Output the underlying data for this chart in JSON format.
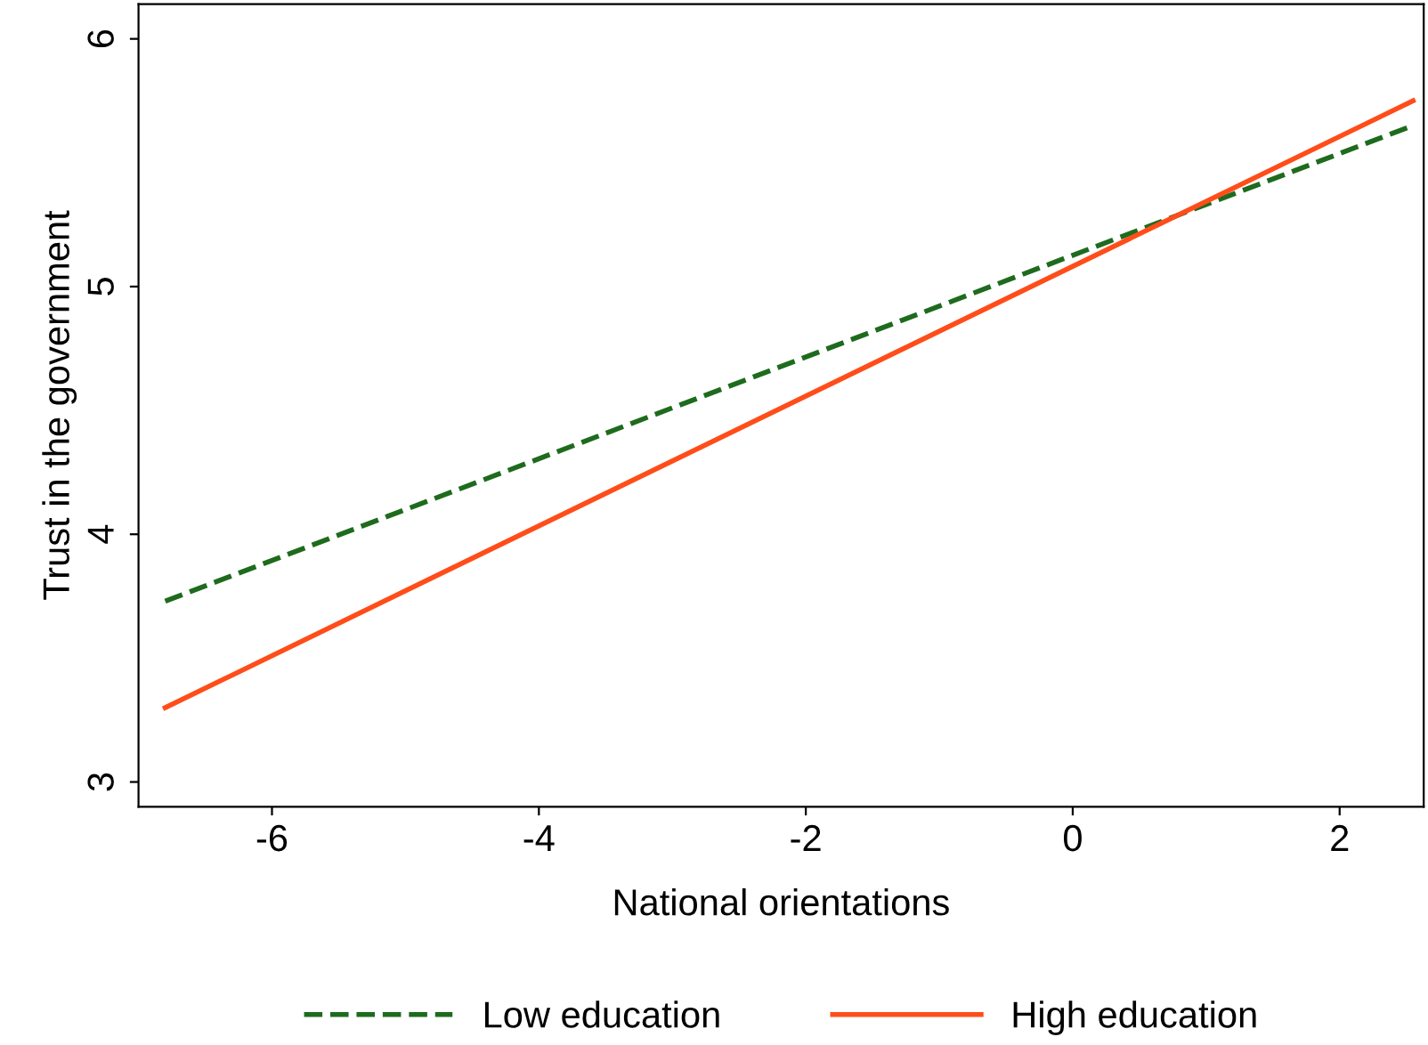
{
  "chart_data": {
    "type": "line",
    "xlabel": "National orientations",
    "ylabel": "Trust in the government",
    "xlim": [
      -7.0,
      2.63
    ],
    "ylim": [
      2.9,
      6.14
    ],
    "xticks": [
      -6,
      -4,
      -2,
      0,
      2
    ],
    "yticks": [
      3,
      4,
      5,
      6
    ],
    "grid": false,
    "legend": "bottom",
    "marker": "none",
    "x": [
      -6.8,
      2.55
    ],
    "series": [
      {
        "name": "Low education",
        "color": "#1e6b1e",
        "values": [
          3.73,
          5.65
        ],
        "line_style": "dashed"
      },
      {
        "name": "High education",
        "color": "#ff4d1a",
        "values": [
          3.3,
          5.75
        ],
        "line_style": "solid"
      }
    ]
  }
}
